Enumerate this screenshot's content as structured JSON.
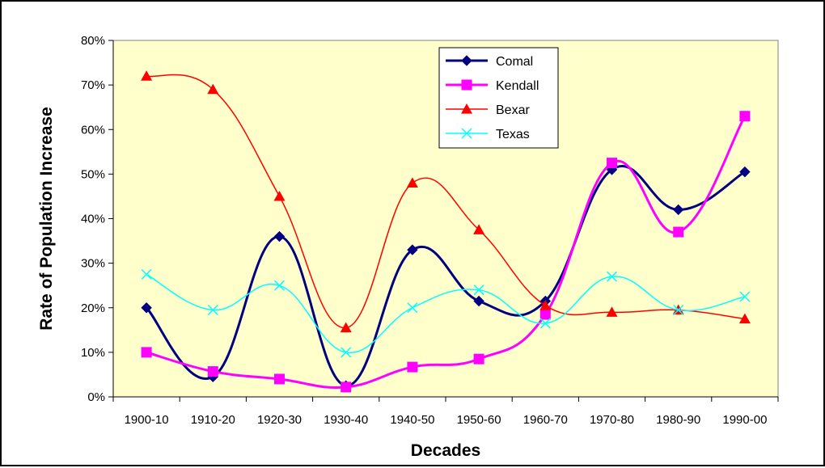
{
  "chart_data": {
    "type": "line",
    "title": "",
    "xlabel": "Decades",
    "ylabel": "Rate of Population Increase",
    "categories": [
      "1900-10",
      "1910-20",
      "1920-30",
      "1930-40",
      "1940-50",
      "1950-60",
      "1960-70",
      "1970-80",
      "1980-90",
      "1990-00"
    ],
    "ylim": [
      0,
      80
    ],
    "yticks": [
      0,
      10,
      20,
      30,
      40,
      50,
      60,
      70,
      80
    ],
    "ytick_labels": [
      "0%",
      "10%",
      "20%",
      "30%",
      "40%",
      "50%",
      "60%",
      "70%",
      "80%"
    ],
    "grid": false,
    "plot_background": "#FFFFCC",
    "legend_position": "top-center",
    "series": [
      {
        "name": "Comal",
        "color": "#000080",
        "marker": "diamond",
        "values": [
          20,
          4.5,
          36,
          2.5,
          33,
          21.5,
          21.5,
          51,
          42,
          50.5
        ]
      },
      {
        "name": "Kendall",
        "color": "#FF00FF",
        "marker": "square",
        "values": [
          10,
          5.7,
          4,
          2.2,
          6.7,
          8.5,
          18.5,
          52.5,
          37,
          63
        ]
      },
      {
        "name": "Bexar",
        "color": "#FF0000",
        "marker": "triangle",
        "values": [
          72,
          69,
          45,
          15.5,
          48,
          37.5,
          20.5,
          19,
          19.5,
          17.5
        ]
      },
      {
        "name": "Texas",
        "color": "#00FFFF",
        "marker": "x",
        "values": [
          27.5,
          19.5,
          25,
          10,
          20,
          24,
          16.5,
          27,
          19.5,
          22.5
        ]
      }
    ]
  }
}
